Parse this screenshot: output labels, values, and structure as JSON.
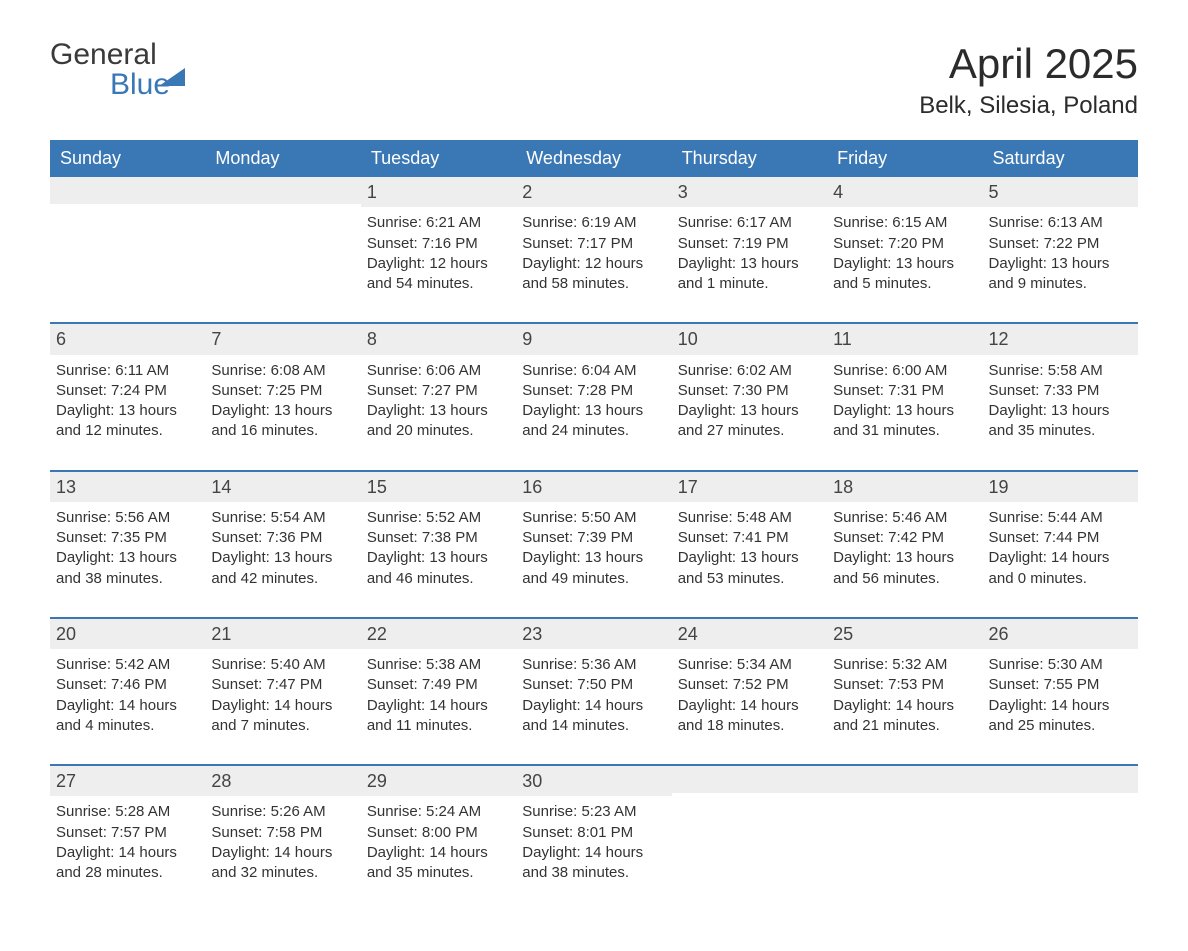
{
  "logo": {
    "word1": "General",
    "word2": "Blue"
  },
  "title": "April 2025",
  "location": "Belk, Silesia, Poland",
  "colors": {
    "header_bg": "#3a77b5",
    "header_text": "#ffffff",
    "daynum_bg": "#eeeeee",
    "text": "#333333",
    "row_border": "#3a77b5",
    "logo_blue": "#3a77b5",
    "logo_dark": "#3a3a3a"
  },
  "weekdays": [
    "Sunday",
    "Monday",
    "Tuesday",
    "Wednesday",
    "Thursday",
    "Friday",
    "Saturday"
  ],
  "weeks": [
    [
      {
        "n": "",
        "sunrise": "",
        "sunset": "",
        "daylight": ""
      },
      {
        "n": "",
        "sunrise": "",
        "sunset": "",
        "daylight": ""
      },
      {
        "n": "1",
        "sunrise": "Sunrise: 6:21 AM",
        "sunset": "Sunset: 7:16 PM",
        "daylight": "Daylight: 12 hours and 54 minutes."
      },
      {
        "n": "2",
        "sunrise": "Sunrise: 6:19 AM",
        "sunset": "Sunset: 7:17 PM",
        "daylight": "Daylight: 12 hours and 58 minutes."
      },
      {
        "n": "3",
        "sunrise": "Sunrise: 6:17 AM",
        "sunset": "Sunset: 7:19 PM",
        "daylight": "Daylight: 13 hours and 1 minute."
      },
      {
        "n": "4",
        "sunrise": "Sunrise: 6:15 AM",
        "sunset": "Sunset: 7:20 PM",
        "daylight": "Daylight: 13 hours and 5 minutes."
      },
      {
        "n": "5",
        "sunrise": "Sunrise: 6:13 AM",
        "sunset": "Sunset: 7:22 PM",
        "daylight": "Daylight: 13 hours and 9 minutes."
      }
    ],
    [
      {
        "n": "6",
        "sunrise": "Sunrise: 6:11 AM",
        "sunset": "Sunset: 7:24 PM",
        "daylight": "Daylight: 13 hours and 12 minutes."
      },
      {
        "n": "7",
        "sunrise": "Sunrise: 6:08 AM",
        "sunset": "Sunset: 7:25 PM",
        "daylight": "Daylight: 13 hours and 16 minutes."
      },
      {
        "n": "8",
        "sunrise": "Sunrise: 6:06 AM",
        "sunset": "Sunset: 7:27 PM",
        "daylight": "Daylight: 13 hours and 20 minutes."
      },
      {
        "n": "9",
        "sunrise": "Sunrise: 6:04 AM",
        "sunset": "Sunset: 7:28 PM",
        "daylight": "Daylight: 13 hours and 24 minutes."
      },
      {
        "n": "10",
        "sunrise": "Sunrise: 6:02 AM",
        "sunset": "Sunset: 7:30 PM",
        "daylight": "Daylight: 13 hours and 27 minutes."
      },
      {
        "n": "11",
        "sunrise": "Sunrise: 6:00 AM",
        "sunset": "Sunset: 7:31 PM",
        "daylight": "Daylight: 13 hours and 31 minutes."
      },
      {
        "n": "12",
        "sunrise": "Sunrise: 5:58 AM",
        "sunset": "Sunset: 7:33 PM",
        "daylight": "Daylight: 13 hours and 35 minutes."
      }
    ],
    [
      {
        "n": "13",
        "sunrise": "Sunrise: 5:56 AM",
        "sunset": "Sunset: 7:35 PM",
        "daylight": "Daylight: 13 hours and 38 minutes."
      },
      {
        "n": "14",
        "sunrise": "Sunrise: 5:54 AM",
        "sunset": "Sunset: 7:36 PM",
        "daylight": "Daylight: 13 hours and 42 minutes."
      },
      {
        "n": "15",
        "sunrise": "Sunrise: 5:52 AM",
        "sunset": "Sunset: 7:38 PM",
        "daylight": "Daylight: 13 hours and 46 minutes."
      },
      {
        "n": "16",
        "sunrise": "Sunrise: 5:50 AM",
        "sunset": "Sunset: 7:39 PM",
        "daylight": "Daylight: 13 hours and 49 minutes."
      },
      {
        "n": "17",
        "sunrise": "Sunrise: 5:48 AM",
        "sunset": "Sunset: 7:41 PM",
        "daylight": "Daylight: 13 hours and 53 minutes."
      },
      {
        "n": "18",
        "sunrise": "Sunrise: 5:46 AM",
        "sunset": "Sunset: 7:42 PM",
        "daylight": "Daylight: 13 hours and 56 minutes."
      },
      {
        "n": "19",
        "sunrise": "Sunrise: 5:44 AM",
        "sunset": "Sunset: 7:44 PM",
        "daylight": "Daylight: 14 hours and 0 minutes."
      }
    ],
    [
      {
        "n": "20",
        "sunrise": "Sunrise: 5:42 AM",
        "sunset": "Sunset: 7:46 PM",
        "daylight": "Daylight: 14 hours and 4 minutes."
      },
      {
        "n": "21",
        "sunrise": "Sunrise: 5:40 AM",
        "sunset": "Sunset: 7:47 PM",
        "daylight": "Daylight: 14 hours and 7 minutes."
      },
      {
        "n": "22",
        "sunrise": "Sunrise: 5:38 AM",
        "sunset": "Sunset: 7:49 PM",
        "daylight": "Daylight: 14 hours and 11 minutes."
      },
      {
        "n": "23",
        "sunrise": "Sunrise: 5:36 AM",
        "sunset": "Sunset: 7:50 PM",
        "daylight": "Daylight: 14 hours and 14 minutes."
      },
      {
        "n": "24",
        "sunrise": "Sunrise: 5:34 AM",
        "sunset": "Sunset: 7:52 PM",
        "daylight": "Daylight: 14 hours and 18 minutes."
      },
      {
        "n": "25",
        "sunrise": "Sunrise: 5:32 AM",
        "sunset": "Sunset: 7:53 PM",
        "daylight": "Daylight: 14 hours and 21 minutes."
      },
      {
        "n": "26",
        "sunrise": "Sunrise: 5:30 AM",
        "sunset": "Sunset: 7:55 PM",
        "daylight": "Daylight: 14 hours and 25 minutes."
      }
    ],
    [
      {
        "n": "27",
        "sunrise": "Sunrise: 5:28 AM",
        "sunset": "Sunset: 7:57 PM",
        "daylight": "Daylight: 14 hours and 28 minutes."
      },
      {
        "n": "28",
        "sunrise": "Sunrise: 5:26 AM",
        "sunset": "Sunset: 7:58 PM",
        "daylight": "Daylight: 14 hours and 32 minutes."
      },
      {
        "n": "29",
        "sunrise": "Sunrise: 5:24 AM",
        "sunset": "Sunset: 8:00 PM",
        "daylight": "Daylight: 14 hours and 35 minutes."
      },
      {
        "n": "30",
        "sunrise": "Sunrise: 5:23 AM",
        "sunset": "Sunset: 8:01 PM",
        "daylight": "Daylight: 14 hours and 38 minutes."
      },
      {
        "n": "",
        "sunrise": "",
        "sunset": "",
        "daylight": ""
      },
      {
        "n": "",
        "sunrise": "",
        "sunset": "",
        "daylight": ""
      },
      {
        "n": "",
        "sunrise": "",
        "sunset": "",
        "daylight": ""
      }
    ]
  ]
}
